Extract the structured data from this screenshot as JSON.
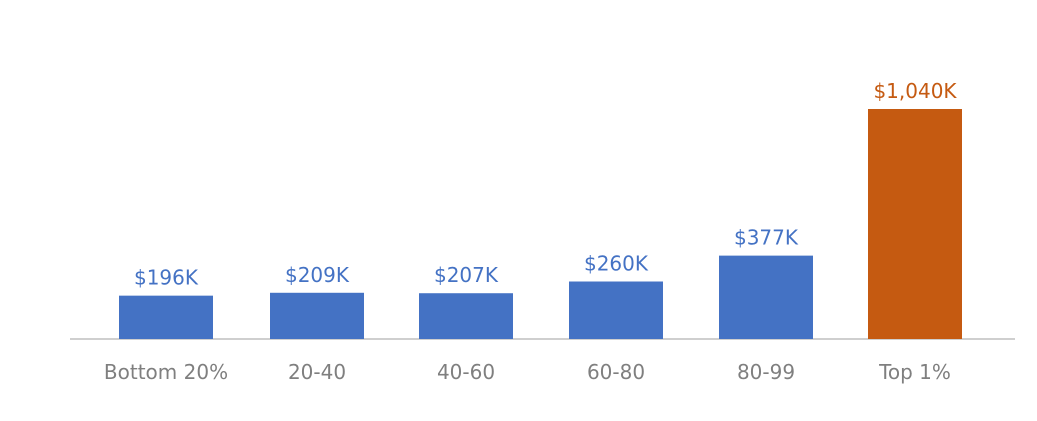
{
  "chart_data": {
    "type": "bar",
    "title": "",
    "xlabel": "",
    "ylabel": "",
    "categories": [
      "Bottom 20%",
      "20-40",
      "40-60",
      "60-80",
      "80-99",
      "Top 1%"
    ],
    "values": [
      196,
      209,
      207,
      260,
      377,
      1040
    ],
    "data_labels": [
      "$196K",
      "$209K",
      "$207K",
      "$260K",
      "$377K",
      "$1,040K"
    ],
    "unit": "thousand dollars",
    "ylim": [
      0,
      1040
    ],
    "grid": false,
    "legend": "none",
    "colors": {
      "default_bar": "#4472C4",
      "highlight_bar": "#C55A11",
      "axis_line": "#BFBFBF",
      "tick_text": "#7F7F7F"
    },
    "highlight_index": 5
  }
}
